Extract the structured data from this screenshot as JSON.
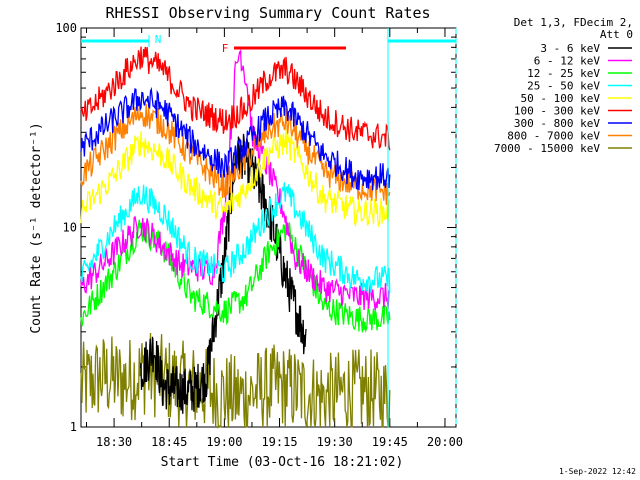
{
  "chart_data": {
    "type": "line",
    "title": "RHESSI Observing Summary Count Rates",
    "xlabel": "Start Time (03-Oct-16 18:21:02)",
    "ylabel": "Count Rate (s⁻¹ detector⁻¹)",
    "yscale": "log",
    "ylim": [
      1,
      100
    ],
    "xlim_min": [
      18.35,
      20.05
    ],
    "x_ticks": [
      "18:30",
      "18:45",
      "19:00",
      "19:15",
      "19:30",
      "19:45",
      "20:00"
    ],
    "y_ticks": [
      "1",
      "10",
      "100"
    ],
    "legend_header": [
      "Det 1,3, FDecim 2,",
      "Att 0"
    ],
    "legend_position": "top-right",
    "grid": false,
    "series": [
      {
        "name": "3 - 6 keV",
        "color": "#000000",
        "points": [
          [
            18.62,
            1.9
          ],
          [
            18.68,
            2.5
          ],
          [
            18.72,
            1.6
          ],
          [
            18.85,
            1.5
          ],
          [
            18.92,
            1.8
          ],
          [
            19.0,
            7
          ],
          [
            19.05,
            22
          ],
          [
            19.08,
            23
          ],
          [
            19.12,
            20
          ],
          [
            19.18,
            14
          ],
          [
            19.22,
            10
          ],
          [
            19.27,
            6
          ],
          [
            19.32,
            4
          ],
          [
            19.37,
            2.8
          ]
        ]
      },
      {
        "name": "6 - 12 keV",
        "color": "#ff00ff",
        "points": [
          [
            18.35,
            5.0
          ],
          [
            18.5,
            7.5
          ],
          [
            18.62,
            10.5
          ],
          [
            18.7,
            8.5
          ],
          [
            18.8,
            6.5
          ],
          [
            18.95,
            6.0
          ],
          [
            19.0,
            12
          ],
          [
            19.05,
            60
          ],
          [
            19.07,
            78
          ],
          [
            19.1,
            55
          ],
          [
            19.13,
            28
          ],
          [
            19.18,
            22
          ],
          [
            19.22,
            17
          ],
          [
            19.27,
            12
          ],
          [
            19.32,
            7
          ],
          [
            19.45,
            5
          ],
          [
            19.6,
            4.5
          ],
          [
            19.75,
            4.5
          ]
        ]
      },
      {
        "name": "12 - 25 keV",
        "color": "#00ff00",
        "points": [
          [
            18.35,
            3.5
          ],
          [
            18.5,
            6
          ],
          [
            18.62,
            10
          ],
          [
            18.72,
            8
          ],
          [
            18.85,
            4.5
          ],
          [
            19.0,
            3.8
          ],
          [
            19.1,
            4.5
          ],
          [
            19.2,
            7.5
          ],
          [
            19.28,
            10
          ],
          [
            19.35,
            7
          ],
          [
            19.45,
            4
          ],
          [
            19.6,
            3.5
          ],
          [
            19.75,
            3.5
          ]
        ]
      },
      {
        "name": "25 - 50 keV",
        "color": "#00ffff",
        "points": [
          [
            18.35,
            5.5
          ],
          [
            18.5,
            10
          ],
          [
            18.62,
            15
          ],
          [
            18.72,
            12
          ],
          [
            18.85,
            7
          ],
          [
            19.0,
            6
          ],
          [
            19.1,
            8
          ],
          [
            19.2,
            12
          ],
          [
            19.28,
            15
          ],
          [
            19.35,
            11
          ],
          [
            19.45,
            7
          ],
          [
            19.6,
            5.5
          ],
          [
            19.75,
            5.5
          ]
        ]
      },
      {
        "name": "50 - 100 keV",
        "color": "#ffff00",
        "points": [
          [
            18.35,
            12
          ],
          [
            18.5,
            18
          ],
          [
            18.62,
            27
          ],
          [
            18.72,
            23
          ],
          [
            18.85,
            16
          ],
          [
            19.0,
            12
          ],
          [
            19.1,
            16
          ],
          [
            19.2,
            24
          ],
          [
            19.28,
            27
          ],
          [
            19.35,
            21
          ],
          [
            19.45,
            14
          ],
          [
            19.6,
            12
          ],
          [
            19.75,
            12
          ]
        ]
      },
      {
        "name": "100 - 300 keV",
        "color": "#ff0000",
        "points": [
          [
            18.35,
            35
          ],
          [
            18.5,
            52
          ],
          [
            18.62,
            73
          ],
          [
            18.72,
            62
          ],
          [
            18.85,
            40
          ],
          [
            19.0,
            34
          ],
          [
            19.1,
            40
          ],
          [
            19.2,
            57
          ],
          [
            19.28,
            62
          ],
          [
            19.35,
            50
          ],
          [
            19.45,
            36
          ],
          [
            19.6,
            30
          ],
          [
            19.75,
            28
          ]
        ]
      },
      {
        "name": "300 - 800 keV",
        "color": "#0000ff",
        "points": [
          [
            18.35,
            25
          ],
          [
            18.5,
            35
          ],
          [
            18.62,
            45
          ],
          [
            18.72,
            40
          ],
          [
            18.85,
            27
          ],
          [
            19.0,
            20
          ],
          [
            19.1,
            26
          ],
          [
            19.2,
            36
          ],
          [
            19.28,
            40
          ],
          [
            19.35,
            32
          ],
          [
            19.45,
            23
          ],
          [
            19.6,
            18
          ],
          [
            19.75,
            18
          ]
        ]
      },
      {
        "name": "800 - 7000 keV",
        "color": "#ff8000",
        "points": [
          [
            18.35,
            18
          ],
          [
            18.5,
            28
          ],
          [
            18.62,
            38
          ],
          [
            18.72,
            33
          ],
          [
            18.85,
            23
          ],
          [
            19.0,
            16
          ],
          [
            19.1,
            22
          ],
          [
            19.2,
            31
          ],
          [
            19.28,
            34
          ],
          [
            19.35,
            27
          ],
          [
            19.45,
            19
          ],
          [
            19.6,
            16
          ],
          [
            19.75,
            15
          ]
        ]
      },
      {
        "name": "7000 - 15000 keV",
        "color": "#808000",
        "points": [
          [
            18.35,
            1.6
          ],
          [
            18.45,
            1.8
          ],
          [
            18.55,
            1.7
          ],
          [
            18.65,
            1.9
          ],
          [
            18.75,
            1.7
          ],
          [
            18.85,
            1.6
          ],
          [
            18.95,
            1.5
          ],
          [
            19.05,
            1.4
          ],
          [
            19.15,
            1.5
          ],
          [
            19.25,
            1.6
          ],
          [
            19.35,
            1.5
          ],
          [
            19.45,
            1.4
          ],
          [
            19.55,
            1.5
          ],
          [
            19.65,
            1.5
          ],
          [
            19.75,
            1.4
          ]
        ]
      }
    ],
    "annotations": {
      "night_label": "N",
      "flare_label": "F",
      "flare_interval": [
        19.0,
        19.46
      ]
    },
    "footer_date": "1-Sep-2022 12:42"
  }
}
